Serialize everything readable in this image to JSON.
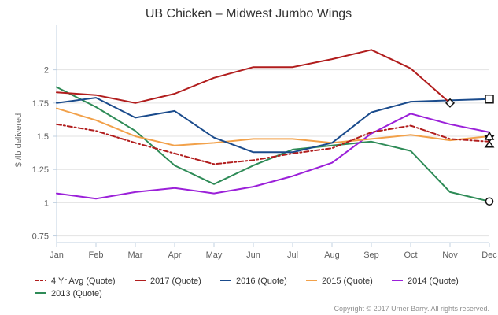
{
  "chart_data": {
    "type": "line",
    "title": "UB Chicken – Midwest Jumbo Wings",
    "ylabel": "$ /lb delivered",
    "xlabel": "",
    "categories": [
      "Jan",
      "Feb",
      "Mar",
      "Apr",
      "May",
      "Jun",
      "Jul",
      "Aug",
      "Sep",
      "Oct",
      "Nov",
      "Dec"
    ],
    "ylim": [
      0.7,
      2.3
    ],
    "yticks": [
      0.75,
      1,
      1.25,
      1.5,
      1.75,
      2
    ],
    "ytick_labels": [
      "0.75",
      "1",
      "1.25",
      "1.5",
      "1.75",
      "2"
    ],
    "grid": "horizontal",
    "legend_position": "bottom",
    "series": [
      {
        "name": "4 Yr Avg (Quote)",
        "color": "#b11d1d",
        "dash": "dashdot",
        "values": [
          1.59,
          1.54,
          1.45,
          1.37,
          1.29,
          1.32,
          1.37,
          1.41,
          1.53,
          1.58,
          1.48,
          1.46
        ],
        "end_marker": "hourglass"
      },
      {
        "name": "2017 (Quote)",
        "color": "#b11d1d",
        "dash": "solid",
        "values": [
          1.83,
          1.81,
          1.75,
          1.82,
          1.94,
          2.02,
          2.02,
          2.08,
          2.15,
          2.01,
          1.75,
          null
        ],
        "end_marker": "diamond"
      },
      {
        "name": "2016 (Quote)",
        "color": "#1a4b8c",
        "dash": "solid",
        "values": [
          1.75,
          1.79,
          1.64,
          1.69,
          1.49,
          1.38,
          1.38,
          1.45,
          1.68,
          1.76,
          1.77,
          1.78
        ],
        "end_marker": "square"
      },
      {
        "name": "2015 (Quote)",
        "color": "#f2a14a",
        "dash": "solid",
        "values": [
          1.71,
          1.62,
          1.5,
          1.43,
          1.45,
          1.48,
          1.48,
          1.45,
          1.48,
          1.51,
          1.47,
          1.5
        ],
        "end_marker": "triangle"
      },
      {
        "name": "2014 (Quote)",
        "color": "#9b20d9",
        "dash": "solid",
        "values": [
          1.07,
          1.03,
          1.08,
          1.11,
          1.07,
          1.12,
          1.2,
          1.3,
          1.52,
          1.67,
          1.59,
          1.53
        ],
        "end_marker": "none"
      },
      {
        "name": "2013 (Quote)",
        "color": "#2e8b57",
        "dash": "solid",
        "values": [
          1.87,
          1.72,
          1.54,
          1.28,
          1.14,
          1.28,
          1.4,
          1.43,
          1.46,
          1.39,
          1.08,
          1.01
        ],
        "end_marker": "circle"
      }
    ],
    "credit": "Copyright © 2017 Urner Barry. All rights reserved."
  }
}
